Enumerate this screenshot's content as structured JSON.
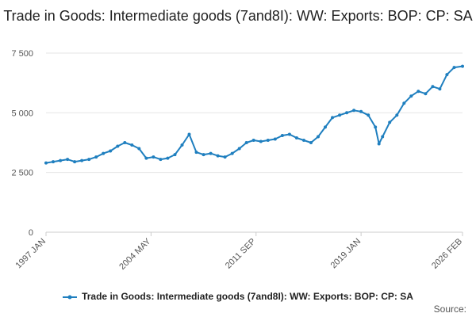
{
  "chart_data": {
    "type": "line",
    "title": "Trade in Goods: Intermediate goods (7and8I): WW: Exports: BOP: CP: SA",
    "xlabel": "",
    "ylabel": "",
    "ylim": [
      0,
      7500
    ],
    "yticks": [
      0,
      2500,
      5000,
      7500
    ],
    "ytick_labels": [
      "0",
      "2 500",
      "5 000",
      "7 500"
    ],
    "xlim": [
      "1997 JAN",
      "2026 FEB"
    ],
    "xtick_labels": [
      "1997 JAN",
      "2004 MAY",
      "2011 SEP",
      "2019 JAN",
      "2026 FEB"
    ],
    "grid": true,
    "legend_position": "bottom",
    "source_label": "Source:",
    "series": [
      {
        "name": "Trade in Goods: Intermediate goods (7and8I): WW: Exports: BOP: CP: SA",
        "color": "#1f7fbf",
        "x": [
          "1997-01",
          "1997-07",
          "1998-01",
          "1998-07",
          "1999-01",
          "1999-07",
          "2000-01",
          "2000-07",
          "2001-01",
          "2001-07",
          "2002-01",
          "2002-07",
          "2003-01",
          "2003-07",
          "2004-01",
          "2004-07",
          "2005-01",
          "2005-07",
          "2006-01",
          "2006-07",
          "2007-01",
          "2007-07",
          "2008-01",
          "2008-07",
          "2009-01",
          "2009-07",
          "2010-01",
          "2010-07",
          "2011-01",
          "2011-07",
          "2012-01",
          "2012-07",
          "2013-01",
          "2013-07",
          "2014-01",
          "2014-07",
          "2015-01",
          "2015-07",
          "2016-01",
          "2016-07",
          "2017-01",
          "2017-07",
          "2018-01",
          "2018-07",
          "2019-01",
          "2019-07",
          "2020-01",
          "2020-04",
          "2020-07",
          "2021-01",
          "2021-07",
          "2022-01",
          "2022-07",
          "2023-01",
          "2023-07",
          "2024-01",
          "2024-07",
          "2025-01",
          "2025-07",
          "2026-02"
        ],
        "values": [
          2900,
          2950,
          3000,
          3050,
          2950,
          3000,
          3050,
          3150,
          3300,
          3400,
          3600,
          3750,
          3650,
          3500,
          3100,
          3150,
          3050,
          3100,
          3250,
          3650,
          4100,
          3350,
          3250,
          3300,
          3200,
          3150,
          3300,
          3500,
          3750,
          3850,
          3800,
          3850,
          3900,
          4050,
          4100,
          3950,
          3850,
          3750,
          4000,
          4400,
          4800,
          4900,
          5000,
          5100,
          5050,
          4900,
          4400,
          3700,
          4000,
          4600,
          4900,
          5400,
          5700,
          5900,
          5800,
          6100,
          6000,
          6600,
          6900,
          6950
        ]
      }
    ]
  }
}
